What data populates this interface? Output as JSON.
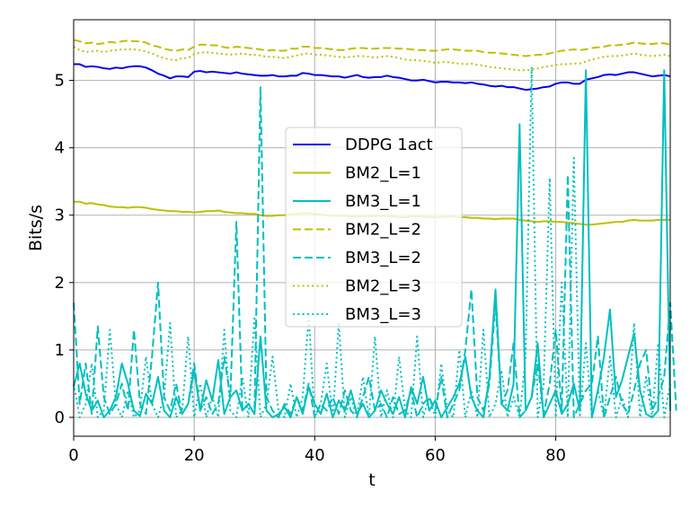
{
  "chart_data": {
    "type": "line",
    "xlabel": "t",
    "ylabel": "Bits/s",
    "xlim": [
      0,
      99
    ],
    "ylim": [
      -0.28,
      5.9
    ],
    "xticks": [
      0,
      20,
      40,
      60,
      80
    ],
    "yticks": [
      0,
      1,
      2,
      3,
      4,
      5
    ],
    "grid": true,
    "legend_position": "center",
    "series": [
      {
        "name": "DDPG 1act",
        "color": "#0000ee",
        "style": "solid",
        "values": [
          5.24,
          5.24,
          5.2,
          5.21,
          5.2,
          5.18,
          5.17,
          5.19,
          5.18,
          5.2,
          5.21,
          5.21,
          5.19,
          5.15,
          5.1,
          5.07,
          5.03,
          5.06,
          5.06,
          5.05,
          5.13,
          5.14,
          5.12,
          5.13,
          5.12,
          5.11,
          5.1,
          5.12,
          5.1,
          5.09,
          5.08,
          5.07,
          5.07,
          5.08,
          5.06,
          5.06,
          5.07,
          5.07,
          5.11,
          5.1,
          5.08,
          5.08,
          5.07,
          5.06,
          5.06,
          5.04,
          5.06,
          5.08,
          5.05,
          5.04,
          5.05,
          5.05,
          5.07,
          5.05,
          5.04,
          5.02,
          5.0,
          5.0,
          5.01,
          4.99,
          4.97,
          4.98,
          4.98,
          4.97,
          4.97,
          4.96,
          4.97,
          4.95,
          4.94,
          4.92,
          4.91,
          4.92,
          4.9,
          4.9,
          4.88,
          4.86,
          4.87,
          4.88,
          4.9,
          4.91,
          4.95,
          4.97,
          4.97,
          4.95,
          4.95,
          5.01,
          5.03,
          5.05,
          5.08,
          5.09,
          5.08,
          5.1,
          5.12,
          5.12,
          5.1,
          5.08,
          5.06,
          5.07,
          5.08,
          5.06
        ]
      },
      {
        "name": "BM2_L=1",
        "color": "#bfbf00",
        "style": "solid",
        "values": [
          3.2,
          3.2,
          3.17,
          3.18,
          3.16,
          3.15,
          3.13,
          3.12,
          3.12,
          3.11,
          3.12,
          3.12,
          3.11,
          3.09,
          3.08,
          3.07,
          3.06,
          3.06,
          3.05,
          3.05,
          3.04,
          3.05,
          3.06,
          3.06,
          3.07,
          3.05,
          3.04,
          3.03,
          3.03,
          3.02,
          3.02,
          3.0,
          2.99,
          2.99,
          3.0,
          3.0,
          3.01,
          3.02,
          3.03,
          3.03,
          3.02,
          3.01,
          3.0,
          2.99,
          2.99,
          2.99,
          2.98,
          2.98,
          2.98,
          2.98,
          2.99,
          2.99,
          2.99,
          2.98,
          2.97,
          2.97,
          2.98,
          2.98,
          2.98,
          2.97,
          2.97,
          2.97,
          2.98,
          2.98,
          2.97,
          2.97,
          2.96,
          2.96,
          2.95,
          2.95,
          2.94,
          2.95,
          2.95,
          2.95,
          2.93,
          2.92,
          2.91,
          2.9,
          2.91,
          2.91,
          2.9,
          2.9,
          2.89,
          2.88,
          2.87,
          2.86,
          2.86,
          2.87,
          2.88,
          2.89,
          2.9,
          2.9,
          2.92,
          2.93,
          2.92,
          2.92,
          2.92,
          2.93,
          2.93,
          2.93
        ]
      },
      {
        "name": "BM3_L=1",
        "color": "#00bfbf",
        "style": "solid",
        "values": [
          0.45,
          0.8,
          0.35,
          0.1,
          0.25,
          0.0,
          0.1,
          0.3,
          0.8,
          0.5,
          0.1,
          0.02,
          0.35,
          0.2,
          0.6,
          0.1,
          0.0,
          0.3,
          0.05,
          0.2,
          0.7,
          0.1,
          0.55,
          0.25,
          0.85,
          0.05,
          0.3,
          0.4,
          0.1,
          0.2,
          0.05,
          1.2,
          0.1,
          0.0,
          0.05,
          0.15,
          0.0,
          0.3,
          0.05,
          0.45,
          0.2,
          0.05,
          0.35,
          0.0,
          0.25,
          0.1,
          0.4,
          0.05,
          0.2,
          0.0,
          0.1,
          0.4,
          0.2,
          0.05,
          0.3,
          0.0,
          0.45,
          0.2,
          0.6,
          0.1,
          0.25,
          0.0,
          0.15,
          0.3,
          0.5,
          0.9,
          0.3,
          0.1,
          0.0,
          0.6,
          1.9,
          0.2,
          0.1,
          0.5,
          4.35,
          0.1,
          0.3,
          1.1,
          0.0,
          0.2,
          0.4,
          0.05,
          0.2,
          0.5,
          0.1,
          5.15,
          0.0,
          0.4,
          0.9,
          1.6,
          0.3,
          0.55,
          0.9,
          1.25,
          0.4,
          0.05,
          0.0,
          0.1,
          5.15,
          0.1
        ]
      },
      {
        "name": "BM2_L=2",
        "color": "#bfbf00",
        "style": "dashed",
        "values": [
          5.6,
          5.58,
          5.55,
          5.56,
          5.54,
          5.55,
          5.57,
          5.56,
          5.58,
          5.59,
          5.58,
          5.58,
          5.56,
          5.52,
          5.5,
          5.47,
          5.45,
          5.44,
          5.46,
          5.45,
          5.5,
          5.53,
          5.53,
          5.52,
          5.52,
          5.49,
          5.48,
          5.5,
          5.49,
          5.48,
          5.47,
          5.46,
          5.44,
          5.45,
          5.44,
          5.44,
          5.47,
          5.47,
          5.5,
          5.5,
          5.48,
          5.48,
          5.47,
          5.46,
          5.45,
          5.45,
          5.47,
          5.48,
          5.48,
          5.47,
          5.47,
          5.48,
          5.48,
          5.48,
          5.47,
          5.47,
          5.46,
          5.45,
          5.45,
          5.44,
          5.44,
          5.45,
          5.46,
          5.46,
          5.45,
          5.44,
          5.44,
          5.44,
          5.42,
          5.41,
          5.41,
          5.4,
          5.39,
          5.38,
          5.37,
          5.36,
          5.37,
          5.38,
          5.38,
          5.4,
          5.42,
          5.44,
          5.45,
          5.46,
          5.45,
          5.46,
          5.48,
          5.49,
          5.5,
          5.52,
          5.52,
          5.53,
          5.54,
          5.56,
          5.55,
          5.54,
          5.54,
          5.55,
          5.55,
          5.53
        ]
      },
      {
        "name": "BM3_L=2",
        "color": "#00bfbf",
        "style": "dashed",
        "values": [
          1.7,
          0.2,
          0.8,
          0.05,
          1.35,
          0.3,
          0.05,
          0.2,
          0.5,
          0.1,
          1.3,
          0.2,
          0.05,
          0.9,
          2.0,
          0.3,
          0.1,
          0.5,
          0.05,
          0.2,
          0.8,
          0.1,
          0.3,
          0.05,
          0.2,
          0.9,
          0.3,
          2.9,
          0.1,
          0.2,
          0.05,
          4.9,
          0.3,
          0.1,
          0.0,
          0.2,
          0.05,
          0.3,
          0.1,
          0.5,
          0.0,
          0.2,
          0.1,
          0.3,
          0.05,
          0.4,
          0.1,
          0.0,
          0.3,
          0.6,
          0.1,
          0.2,
          0.0,
          0.3,
          0.05,
          0.1,
          0.4,
          0.0,
          0.2,
          0.3,
          0.1,
          0.6,
          0.0,
          0.2,
          0.4,
          1.0,
          1.9,
          0.3,
          0.1,
          0.5,
          1.7,
          0.2,
          0.4,
          1.1,
          0.0,
          0.1,
          0.3,
          0.8,
          0.05,
          0.5,
          1.3,
          0.1,
          3.6,
          0.0,
          0.2,
          0.4,
          0.5,
          1.2,
          0.0,
          0.3,
          0.6,
          0.2,
          0.05,
          0.4,
          0.8,
          1.0,
          0.1,
          0.3,
          0.6,
          1.7,
          0.1
        ]
      },
      {
        "name": "BM2_L=3",
        "color": "#bfbf00",
        "style": "dotted",
        "values": [
          5.5,
          5.45,
          5.42,
          5.43,
          5.44,
          5.42,
          5.44,
          5.45,
          5.46,
          5.46,
          5.46,
          5.45,
          5.43,
          5.4,
          5.36,
          5.33,
          5.31,
          5.3,
          5.33,
          5.33,
          5.39,
          5.41,
          5.42,
          5.41,
          5.4,
          5.39,
          5.38,
          5.39,
          5.4,
          5.38,
          5.38,
          5.37,
          5.35,
          5.35,
          5.34,
          5.33,
          5.35,
          5.37,
          5.39,
          5.4,
          5.38,
          5.38,
          5.37,
          5.36,
          5.35,
          5.34,
          5.35,
          5.36,
          5.36,
          5.35,
          5.34,
          5.35,
          5.36,
          5.35,
          5.33,
          5.31,
          5.3,
          5.3,
          5.29,
          5.28,
          5.26,
          5.27,
          5.27,
          5.26,
          5.25,
          5.24,
          5.25,
          5.23,
          5.22,
          5.2,
          5.19,
          5.18,
          5.17,
          5.16,
          5.15,
          5.15,
          5.16,
          5.18,
          5.2,
          5.21,
          5.23,
          5.24,
          5.24,
          5.25,
          5.25,
          5.28,
          5.31,
          5.33,
          5.35,
          5.36,
          5.36,
          5.37,
          5.38,
          5.4,
          5.38,
          5.37,
          5.36,
          5.37,
          5.38,
          5.36
        ]
      },
      {
        "name": "BM3_L=3",
        "color": "#00bfbf",
        "style": "dotted",
        "values": [
          0.5,
          0.0,
          0.2,
          0.8,
          0.0,
          0.1,
          1.3,
          0.2,
          0.0,
          0.4,
          0.0,
          0.1,
          0.9,
          0.2,
          0.0,
          0.3,
          1.4,
          0.0,
          0.1,
          1.2,
          0.0,
          0.5,
          0.0,
          0.3,
          0.0,
          1.3,
          0.1,
          0.0,
          0.6,
          0.0,
          1.5,
          0.0,
          0.2,
          0.9,
          0.1,
          0.0,
          0.5,
          0.0,
          0.3,
          1.5,
          0.0,
          0.2,
          0.8,
          0.0,
          1.4,
          0.0,
          0.3,
          0.0,
          0.6,
          0.0,
          1.2,
          0.0,
          0.4,
          0.0,
          0.9,
          0.1,
          0.0,
          1.2,
          0.0,
          0.3,
          0.0,
          0.8,
          0.1,
          0.0,
          1.0,
          0.0,
          0.4,
          0.0,
          1.3,
          0.0,
          0.2,
          0.7,
          0.0,
          0.3,
          0.0,
          0.9,
          5.2,
          0.0,
          0.5,
          3.55,
          0.0,
          2.0,
          0.0,
          3.85,
          0.0,
          1.1,
          0.0,
          0.4,
          0.0,
          0.9,
          0.0,
          0.3,
          0.0,
          1.4,
          0.0,
          0.6,
          0.0,
          1.1,
          0.0,
          0.5
        ]
      }
    ]
  }
}
